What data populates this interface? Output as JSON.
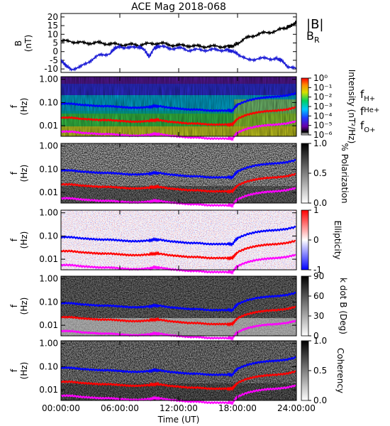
{
  "title": "ACE Mag 2018-068",
  "xaxis": {
    "label": "Time (UT)",
    "ticks": [
      "00:00:00",
      "06:00:00",
      "12:00:00",
      "18:00:00",
      "24:00:00"
    ],
    "range_hours": [
      0,
      24
    ]
  },
  "colors": {
    "B_total": "#000000",
    "B_R": "#1f1fd6",
    "f_H": "#0000ff",
    "f_He": "#ff0000",
    "f_O": "#ff00ff"
  },
  "chart_data": [
    {
      "type": "line",
      "panel": "magnetic-field",
      "ylabel": "B",
      "yunit": "(nT)",
      "ylim": [
        -12,
        22
      ],
      "yticks": [
        "20",
        "15",
        "10",
        "5",
        "0",
        "-5",
        "-10"
      ],
      "legend": [
        {
          "label": "|B|"
        },
        {
          "label": "B",
          "sub": "R"
        }
      ],
      "series": [
        {
          "label": "|B|",
          "x_hours": [
            0,
            1,
            2,
            3,
            4,
            5,
            6,
            7,
            8,
            9,
            10,
            11,
            12,
            13,
            14,
            15,
            16,
            17,
            17.5,
            18,
            19,
            20,
            21,
            22,
            23,
            23.5,
            24
          ],
          "values": [
            6,
            6,
            5,
            5,
            5,
            4.5,
            4,
            4,
            4,
            4.5,
            5,
            4,
            3.5,
            3.5,
            3,
            3,
            3,
            3,
            3,
            5,
            8,
            10,
            11,
            12,
            14,
            15,
            17
          ]
        },
        {
          "label": "B_R",
          "x_hours": [
            0,
            0.5,
            1,
            2,
            3,
            4,
            5,
            5.5,
            6,
            7,
            8,
            8.5,
            9,
            9.5,
            10,
            11,
            12,
            13,
            14,
            15,
            16,
            17,
            17.5,
            18,
            19,
            20,
            21,
            22,
            22.5,
            23,
            24
          ],
          "values": [
            -5,
            -8,
            -10,
            -9,
            -5,
            -2,
            -1,
            2,
            3,
            2,
            3,
            1,
            -3,
            2,
            3,
            2,
            2,
            1,
            1,
            1,
            1,
            1,
            0,
            -1,
            -5,
            -4,
            -4,
            -4,
            -5,
            -8,
            -10
          ]
        }
      ]
    },
    {
      "type": "heatmap",
      "panel": "power-spectrum",
      "ylabel": "f",
      "yunit": "(Hz)",
      "yticks": [
        "1.00",
        "0.10",
        "0.01"
      ],
      "colorbar": {
        "label": "Intensity (nT²/Hz)",
        "ticks": [
          "10⁰",
          "10⁻¹",
          "10⁻²",
          "10⁻³",
          "10⁻⁴",
          "10⁻⁵",
          "10⁻⁶"
        ]
      },
      "legend": [
        {
          "label": "f",
          "sub": "H+"
        },
        {
          "label": "f",
          "sub": "He+"
        },
        {
          "label": "f",
          "sub": "O+"
        }
      ]
    },
    {
      "type": "heatmap",
      "panel": "polarization",
      "ylabel": "f",
      "yunit": "(Hz)",
      "yticks": [
        "1.00",
        "0.10",
        "0.01"
      ],
      "colorbar": {
        "label": "% Polarization",
        "ticks": [
          "1.0",
          "0.5",
          "0.0"
        ]
      }
    },
    {
      "type": "heatmap",
      "panel": "ellipticity",
      "ylabel": "f",
      "yunit": "(Hz)",
      "yticks": [
        "1.00",
        "0.10",
        "0.01"
      ],
      "colorbar": {
        "label": "Ellipticity",
        "ticks": [
          "1",
          "0",
          "-1"
        ]
      }
    },
    {
      "type": "heatmap",
      "panel": "wave-normal-angle",
      "ylabel": "f",
      "yunit": "(Hz)",
      "yticks": [
        "1.00",
        "0.10",
        "0.01"
      ],
      "colorbar": {
        "label": "k dot B (Deg)",
        "ticks": [
          "90",
          "60",
          "30",
          "0"
        ]
      }
    },
    {
      "type": "heatmap",
      "panel": "coherence",
      "ylabel": "f",
      "yunit": "(Hz)",
      "yticks": [
        "1.00",
        "0.10",
        "0.01"
      ],
      "colorbar": {
        "label": "Coherency",
        "ticks": [
          "1.0",
          "0.5",
          "0.0"
        ]
      }
    }
  ],
  "gyrofrequencies": {
    "x_hours": [
      0,
      1,
      2,
      3,
      4,
      5,
      6,
      7,
      8,
      9,
      9.5,
      10,
      11,
      12,
      13,
      14,
      15,
      16,
      17,
      17.5,
      18,
      19,
      20,
      21,
      22,
      23,
      24
    ],
    "f_H_hz": [
      0.09,
      0.09,
      0.08,
      0.075,
      0.07,
      0.07,
      0.065,
      0.06,
      0.06,
      0.065,
      0.07,
      0.07,
      0.06,
      0.055,
      0.05,
      0.05,
      0.045,
      0.045,
      0.045,
      0.045,
      0.08,
      0.12,
      0.15,
      0.17,
      0.18,
      0.2,
      0.25
    ]
  }
}
